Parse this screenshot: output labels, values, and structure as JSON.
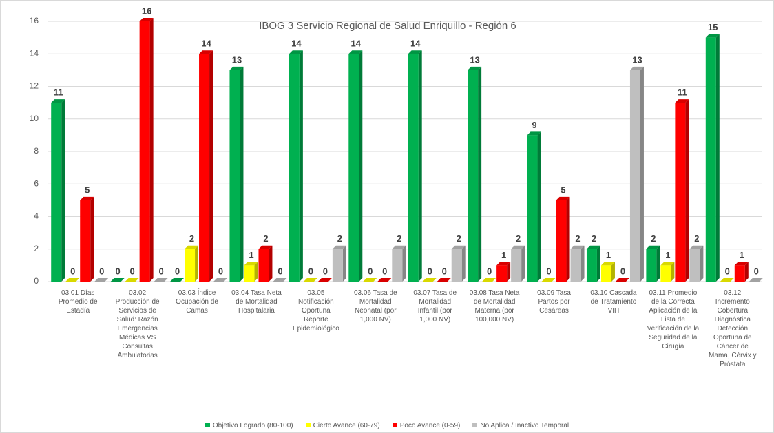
{
  "chart_data": {
    "type": "bar3d",
    "title": "IBOG 3 Servicio Regional de Salud Enriquillo - Región 6",
    "categories": [
      "03.01 Días Promedio de Estadía",
      "03.02 Producción de Servicios de Salud: Razón Emergencias Médicas VS Consultas Ambulatorias",
      "03.03 Índice Ocupación de Camas",
      "03.04 Tasa Neta de Mortalidad Hospitalaria",
      "03.05 Notificación Oportuna Reporte Epidemiológico",
      "03.06 Tasa de Mortalidad Neonatal (por 1,000 NV)",
      "03.07 Tasa de Mortalidad Infantil (por 1,000 NV)",
      "03.08 Tasa Neta de Mortalidad Materna (por 100,000 NV)",
      "03.09 Tasa Partos por Cesáreas",
      "03.10 Cascada de Tratamiento VIH",
      "03.11 Promedio de la Correcta Aplicación de la Lista de Verificación de la Seguridad de la Cirugía",
      "03.12 Incremento Cobertura Diagnóstica Detección Oportuna de Cáncer de Mama, Cérvix y Próstata"
    ],
    "series": [
      {
        "name": "Objetivo Logrado (80-100)",
        "color": "#00b050",
        "values": [
          11,
          0,
          0,
          13,
          14,
          14,
          14,
          13,
          9,
          2,
          2,
          15
        ]
      },
      {
        "name": "Cierto Avance (60-79)",
        "color": "#ffff00",
        "values": [
          0,
          0,
          2,
          1,
          0,
          0,
          0,
          0,
          0,
          1,
          1,
          0
        ]
      },
      {
        "name": "Poco Avance (0-59)",
        "color": "#ff0000",
        "values": [
          5,
          16,
          14,
          2,
          0,
          0,
          0,
          1,
          5,
          0,
          11,
          1
        ]
      },
      {
        "name": "No Aplica / Inactivo Temporal",
        "color": "#bfbfbf",
        "values": [
          0,
          0,
          0,
          0,
          2,
          2,
          2,
          2,
          2,
          13,
          2,
          0
        ]
      }
    ],
    "ylim": [
      0,
      16
    ],
    "yticks": [
      0,
      2,
      4,
      6,
      8,
      10,
      12,
      14,
      16
    ],
    "grid": true,
    "legend": "bottom"
  }
}
